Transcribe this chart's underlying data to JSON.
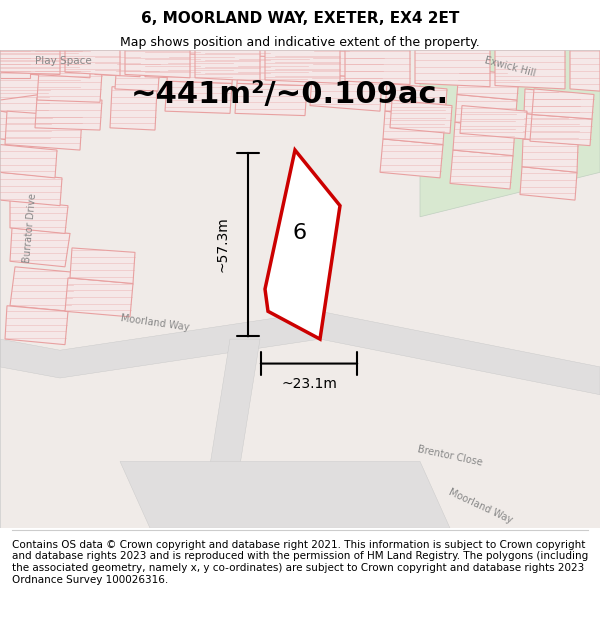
{
  "title": "6, MOORLAND WAY, EXETER, EX4 2ET",
  "subtitle": "Map shows position and indicative extent of the property.",
  "area_text": "~441m²/~0.109ac.",
  "dim_width": "~23.1m",
  "dim_height": "~57.3m",
  "property_label": "6",
  "footer": "Contains OS data © Crown copyright and database right 2021. This information is subject to Crown copyright and database rights 2023 and is reproduced with the permission of HM Land Registry. The polygons (including the associated geometry, namely x, y co-ordinates) are subject to Crown copyright and database rights 2023 Ordnance Survey 100026316.",
  "bg_color": "#f5f0f0",
  "map_bg": "#f0ebe8",
  "road_color": "#e8e8e8",
  "building_stroke": "#e8a0a0",
  "building_fill": "#f5e8e8",
  "property_stroke": "#cc0000",
  "green_area": "#e8f0e8",
  "title_fontsize": 11,
  "subtitle_fontsize": 9,
  "area_fontsize": 22,
  "footer_fontsize": 7.5
}
